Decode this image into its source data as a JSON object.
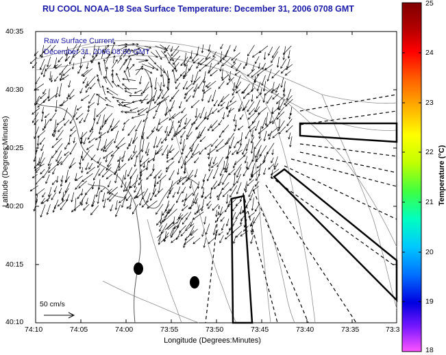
{
  "title": "RU COOL  NOAA−18  Sea Surface Temperature:  December 31, 2006 0708 GMT",
  "overlay": {
    "line1": "Raw Surface Current",
    "line2": "December 31, 2006 08:00 GMT"
  },
  "axes": {
    "xlabel": "Longitude (Degrees:Minutes)",
    "ylabel": "Latitude (Degrees:Minutes)",
    "x_ticks": [
      "74:10",
      "74:05",
      "74:00",
      "73:55",
      "73:50",
      "73:45",
      "73:40",
      "73:35",
      "73:3"
    ],
    "y_ticks": [
      "40:35",
      "40:30",
      "40:25",
      "40:20",
      "40:15",
      "40:10"
    ]
  },
  "colorbar": {
    "label": "Temperature (°C)",
    "ticks": [
      "25",
      "24",
      "23",
      "22",
      "21",
      "20",
      "19",
      "18"
    ],
    "min": 18,
    "max": 25,
    "colors": [
      "#ff55ff",
      "#7a18ff",
      "#0000e0",
      "#0070ff",
      "#00c8ff",
      "#00ffc0",
      "#40ff40",
      "#c0ff00",
      "#ffff00",
      "#ffb000",
      "#ff6000",
      "#ff0000",
      "#b00000",
      "#800000"
    ]
  },
  "scale": {
    "label": "50 cm/s"
  },
  "colors": {
    "title": "#1a1aa8",
    "contour": "#8c8c8c",
    "arrow": "#000000"
  }
}
